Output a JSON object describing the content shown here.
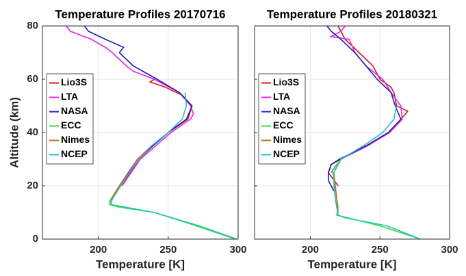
{
  "chart_data": [
    {
      "type": "line",
      "title": "Temperature Profiles 20170716",
      "xlabel": "Temperature [K]",
      "ylabel": "Altitude (km)",
      "xlim": [
        160,
        300
      ],
      "xticks": [
        200,
        250,
        300
      ],
      "ylim": [
        0,
        80
      ],
      "yticks": [
        0,
        20,
        40,
        60,
        80
      ],
      "grid": true,
      "legend": "west",
      "ytick_labels": true,
      "series": [
        {
          "name": "Lio3S",
          "color": "#e81010",
          "x": [
            210,
            216,
            223,
            229,
            239,
            250,
            264,
            267,
            260,
            248,
            237,
            240
          ],
          "values": [
            15,
            20,
            25,
            30,
            35,
            40,
            45,
            50,
            54,
            57,
            59,
            60
          ]
        },
        {
          "name": "LTA",
          "color": "#f020f0",
          "x": [
            217,
            230,
            252,
            266,
            268,
            266,
            258,
            240,
            225,
            220,
            210,
            205,
            195,
            180,
            177
          ],
          "values": [
            20,
            30,
            40,
            45,
            47,
            50,
            55,
            60,
            63,
            65,
            70,
            72,
            75,
            78,
            80
          ]
        },
        {
          "name": "NASA",
          "color": "#1818c8",
          "x": [
            208,
            215,
            228,
            250,
            263,
            267,
            258,
            242,
            225,
            215,
            218,
            205,
            193,
            190
          ],
          "values": [
            14,
            20,
            30,
            40,
            45,
            50,
            55,
            60,
            65,
            70,
            72,
            75,
            78,
            80
          ]
        },
        {
          "name": "ECC",
          "color": "#30e030",
          "x": [
            298,
            270,
            240,
            215,
            208,
            209,
            213,
            215,
            222,
            228,
            232
          ],
          "values": [
            0,
            5,
            10,
            12,
            13,
            15,
            18,
            20,
            25,
            30,
            32
          ]
        },
        {
          "name": "Nimes",
          "color": "#d2691e",
          "x": [
            209,
            215,
            222,
            228,
            238
          ],
          "values": [
            15,
            20,
            25,
            30,
            35
          ]
        },
        {
          "name": "NCEP",
          "color": "#20c0c0",
          "x": [
            299,
            272,
            240,
            209,
            210,
            216,
            222,
            229,
            238,
            250,
            260,
            263,
            262
          ],
          "values": [
            0,
            5,
            10,
            13,
            15,
            20,
            25,
            30,
            35,
            40,
            45,
            50,
            55
          ]
        }
      ]
    },
    {
      "type": "line",
      "title": "Temperature Profiles 20180321",
      "xlabel": "Temperature [K]",
      "xlim": [
        160,
        300
      ],
      "xticks": [
        200,
        250,
        300
      ],
      "ylim": [
        0,
        80
      ],
      "yticks": [
        0,
        20,
        40,
        60,
        80
      ],
      "grid": true,
      "legend": "west",
      "ytick_labels": false,
      "series": [
        {
          "name": "Lio3S",
          "color": "#e81010",
          "x": [
            220,
            213,
            215,
            222,
            240,
            256,
            265,
            270,
            262,
            260,
            258,
            250,
            245,
            235,
            225,
            222,
            220
          ],
          "values": [
            20,
            25,
            28,
            30,
            35,
            40,
            45,
            48,
            50,
            55,
            57,
            60,
            65,
            70,
            75,
            78,
            80
          ]
        },
        {
          "name": "LTA",
          "color": "#f020f0",
          "x": [
            215,
            222,
            241,
            257,
            266,
            265,
            258,
            252,
            240,
            232,
            228,
            215,
            222,
            225
          ],
          "values": [
            25,
            30,
            35,
            40,
            45,
            50,
            55,
            60,
            65,
            70,
            75,
            76,
            78,
            80
          ]
        },
        {
          "name": "NASA",
          "color": "#1818c8",
          "x": [
            217,
            213,
            213,
            215,
            221,
            240,
            256,
            265,
            261,
            258,
            248,
            240,
            232,
            222,
            215,
            212
          ],
          "values": [
            18,
            22,
            25,
            28,
            30,
            35,
            40,
            45,
            50,
            55,
            60,
            65,
            70,
            75,
            78,
            80
          ]
        },
        {
          "name": "ECC",
          "color": "#30e030",
          "x": [
            279,
            250,
            219,
            220,
            218,
            217,
            216,
            219,
            222
          ],
          "values": [
            0,
            5,
            9,
            12,
            18,
            22,
            26,
            28,
            30
          ]
        },
        {
          "name": "Nimes",
          "color": "#d2691e",
          "x": [
            220,
            219,
            218,
            217,
            222
          ],
          "values": [
            10,
            15,
            20,
            25,
            30
          ]
        },
        {
          "name": "NCEP",
          "color": "#20c0c0",
          "x": [
            279,
            255,
            225,
            220,
            219,
            218,
            217,
            217,
            222,
            238,
            252,
            260,
            262
          ],
          "values": [
            0,
            5,
            8,
            9,
            12,
            15,
            20,
            25,
            30,
            35,
            40,
            45,
            50
          ]
        }
      ]
    }
  ]
}
